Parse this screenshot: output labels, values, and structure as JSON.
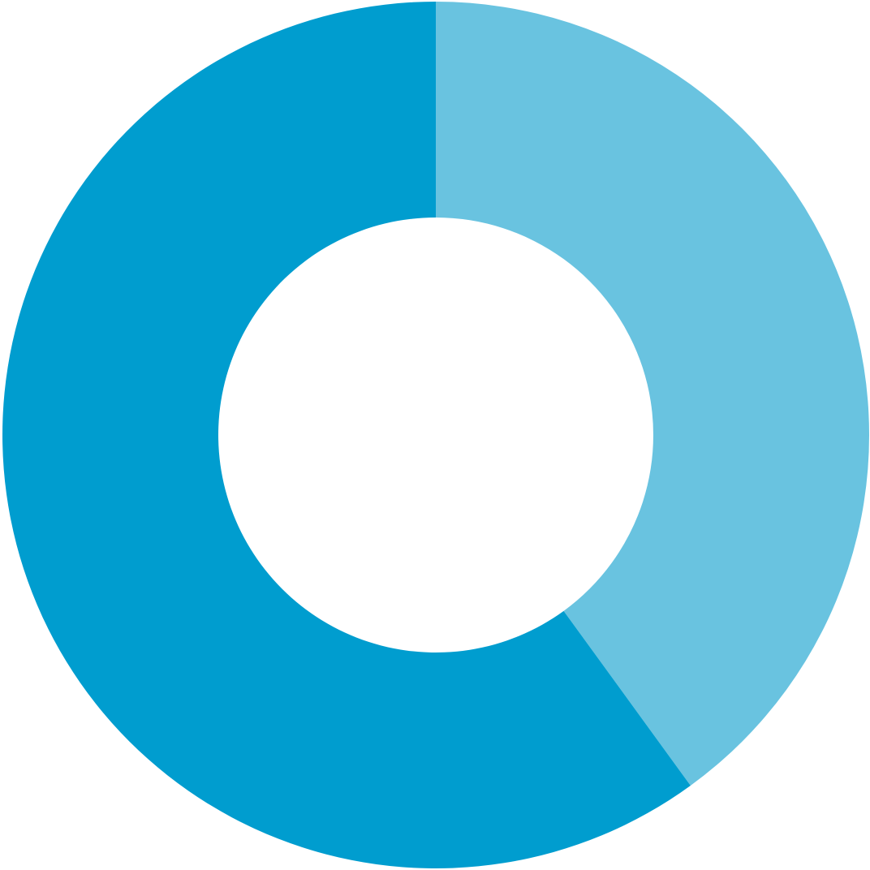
{
  "chart_data": {
    "type": "pie",
    "variant": "donut",
    "start_angle_deg": 0,
    "direction": "clockwise",
    "slices": [
      {
        "value": 40,
        "color": "#69c3e0"
      },
      {
        "value": 60,
        "color": "#009dcf"
      }
    ],
    "legend": "none",
    "data_labels": "none"
  }
}
